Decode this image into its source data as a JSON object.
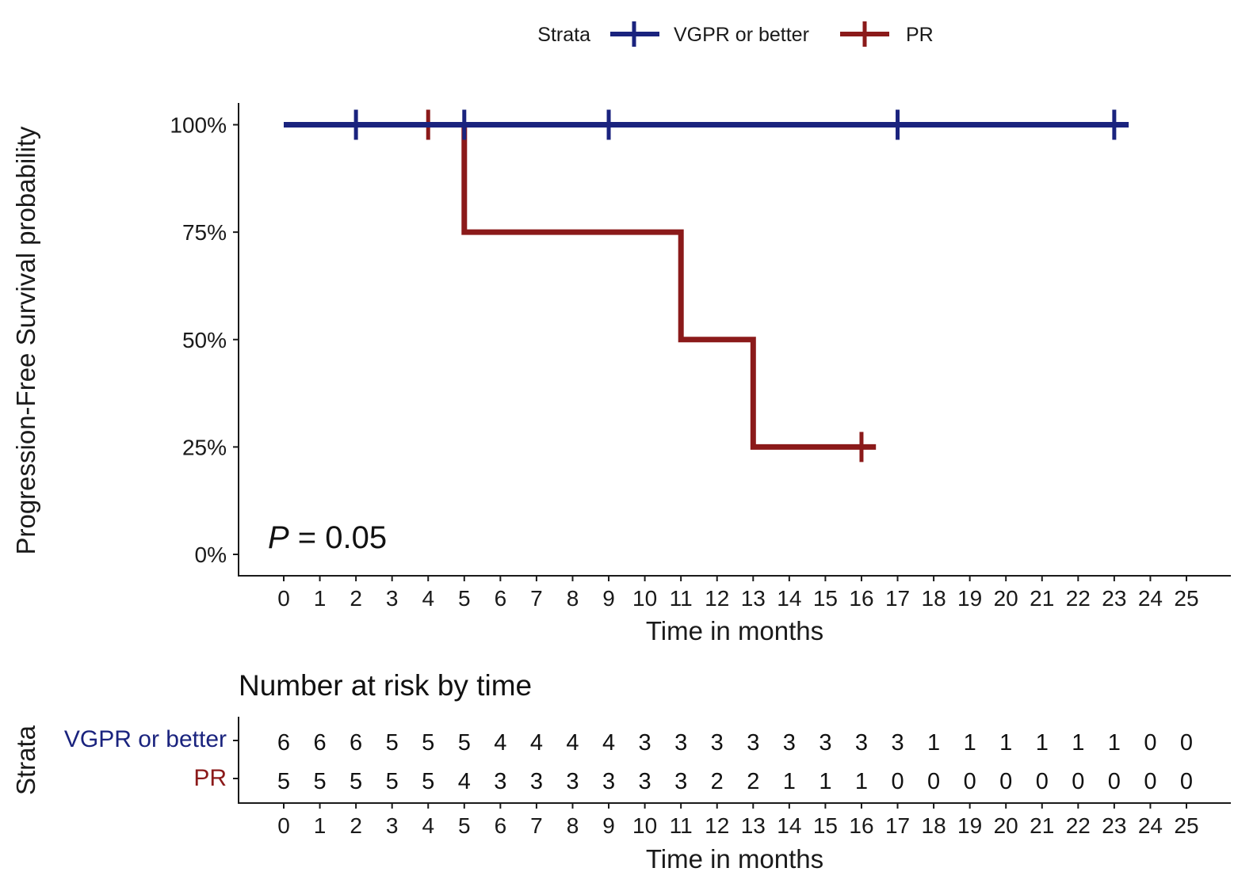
{
  "chart_data": {
    "type": "line",
    "subtype": "kaplan-meier",
    "legend": {
      "title": "Strata",
      "position": "top"
    },
    "ylabel": "Progression-Free Survival probability",
    "xlabel": "Time in months",
    "y_ticks": [
      "0%",
      "25%",
      "50%",
      "75%",
      "100%"
    ],
    "y_tick_values": [
      0,
      25,
      50,
      75,
      100
    ],
    "ylim": [
      0,
      100
    ],
    "xlim": [
      0,
      25
    ],
    "x_ticks": [
      0,
      1,
      2,
      3,
      4,
      5,
      6,
      7,
      8,
      9,
      10,
      11,
      12,
      13,
      14,
      15,
      16,
      17,
      18,
      19,
      20,
      21,
      22,
      23,
      24,
      25
    ],
    "annotation": {
      "italic": "P",
      "rest": " = 0.05"
    },
    "series": [
      {
        "name": "VGPR or better",
        "color": "#1a237e",
        "steps": [
          [
            0,
            100
          ],
          [
            23.4,
            100
          ]
        ],
        "censor_times": [
          2,
          5,
          9,
          17,
          23
        ],
        "censor_values": [
          100,
          100,
          100,
          100,
          100
        ]
      },
      {
        "name": "PR",
        "color": "#8b1a1a",
        "steps": [
          [
            0,
            100
          ],
          [
            5,
            100
          ],
          [
            5,
            75
          ],
          [
            11,
            75
          ],
          [
            11,
            50
          ],
          [
            13,
            50
          ],
          [
            13,
            25
          ],
          [
            16.4,
            25
          ]
        ],
        "censor_times": [
          4,
          16
        ],
        "censor_values": [
          100,
          25
        ]
      }
    ],
    "risk_table": {
      "title": "Number at risk by time",
      "ylabel": "Strata",
      "xlabel": "Time in months",
      "rows": [
        {
          "name": "VGPR or better",
          "color": "#1a237e",
          "values": [
            6,
            6,
            6,
            5,
            5,
            5,
            4,
            4,
            4,
            4,
            3,
            3,
            3,
            3,
            3,
            3,
            3,
            3,
            1,
            1,
            1,
            1,
            1,
            1,
            0,
            0
          ]
        },
        {
          "name": "PR",
          "color": "#8b1a1a",
          "values": [
            5,
            5,
            5,
            5,
            5,
            4,
            3,
            3,
            3,
            3,
            3,
            3,
            2,
            2,
            1,
            1,
            1,
            0,
            0,
            0,
            0,
            0,
            0,
            0,
            0,
            0
          ]
        }
      ]
    }
  }
}
